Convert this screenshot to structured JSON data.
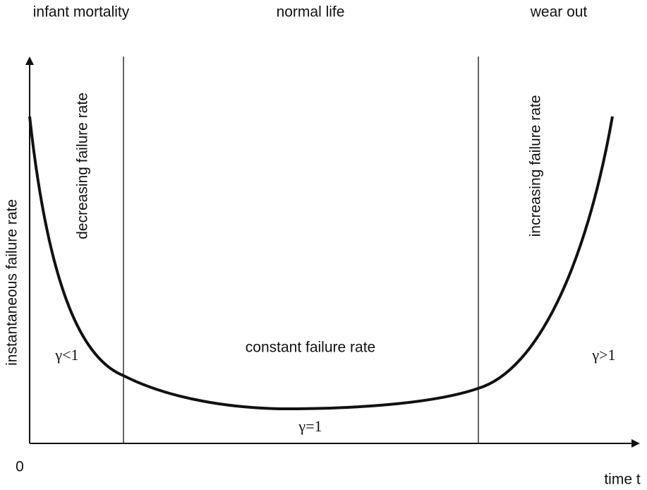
{
  "regions": {
    "left": "infant mortality",
    "middle": "normal life",
    "right": "wear out"
  },
  "axes": {
    "y_label": "instantaneous failure rate",
    "x_label": "time t",
    "origin": "0"
  },
  "annotations": {
    "decreasing": "decreasing failure rate",
    "increasing": "increasing failure rate",
    "constant": "constant failure rate",
    "gamma_left": "γ<1",
    "gamma_middle": "γ=1",
    "gamma_right": "γ>1"
  }
}
